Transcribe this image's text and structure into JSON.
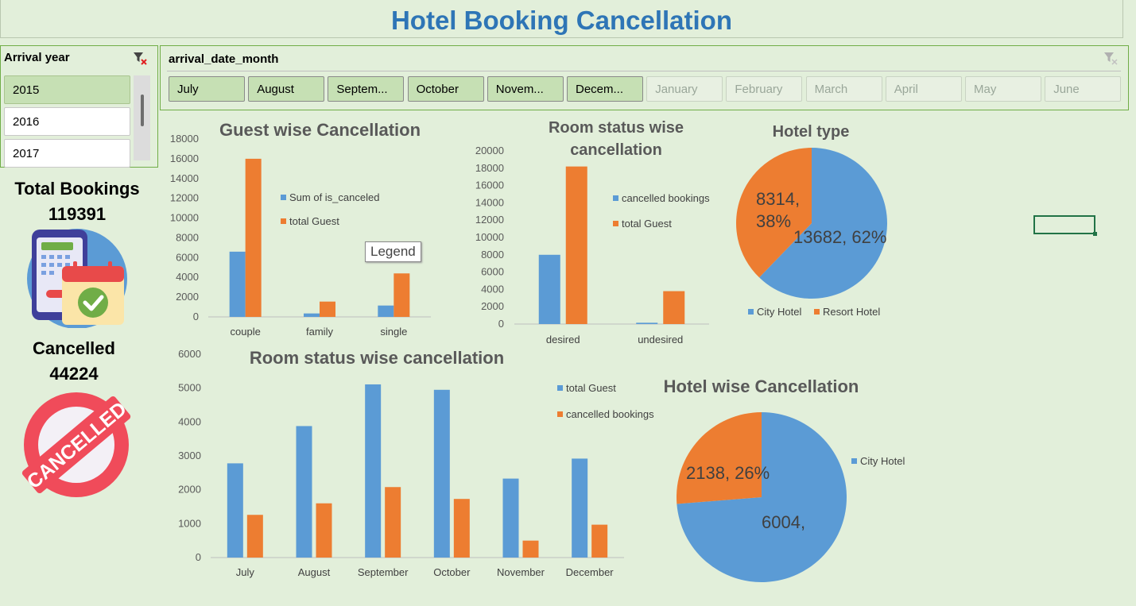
{
  "title": "Hotel Booking Cancellation",
  "year_slicer": {
    "header": "Arrival year",
    "items": [
      {
        "label": "2015",
        "selected": true
      },
      {
        "label": "2016",
        "selected": false
      },
      {
        "label": "2017",
        "selected": false
      }
    ]
  },
  "month_slicer": {
    "header": "arrival_date_month",
    "items": [
      {
        "label": "July",
        "state": "sel"
      },
      {
        "label": "August",
        "state": "sel"
      },
      {
        "label": "Septem...",
        "state": "sel"
      },
      {
        "label": "October",
        "state": "sel"
      },
      {
        "label": "Novem...",
        "state": "sel"
      },
      {
        "label": "Decem...",
        "state": "sel"
      },
      {
        "label": "January",
        "state": "off"
      },
      {
        "label": "February",
        "state": "off"
      },
      {
        "label": "March",
        "state": "off"
      },
      {
        "label": "April",
        "state": "off"
      },
      {
        "label": "May",
        "state": "off"
      },
      {
        "label": "June",
        "state": "off"
      }
    ]
  },
  "kpi": {
    "total_label": "Total Bookings",
    "total_value": "119391",
    "cancel_label": "Cancelled",
    "cancel_value": "44224",
    "stamp_text": "CANCELLED"
  },
  "tooltip": "Legend",
  "colors": {
    "blue": "#5b9bd5",
    "orange": "#ed7d31"
  },
  "chart_data": [
    {
      "id": "guest",
      "type": "bar",
      "title": "Guest wise Cancellation",
      "categories": [
        "couple",
        "family",
        "single"
      ],
      "series": [
        {
          "name": "Sum of is_canceled",
          "values": [
            6600,
            350,
            1150
          ]
        },
        {
          "name": "total Guest",
          "values": [
            16000,
            1550,
            4400
          ]
        }
      ],
      "ylim": [
        0,
        18000
      ],
      "yticks": [
        0,
        2000,
        4000,
        6000,
        8000,
        10000,
        12000,
        14000,
        16000,
        18000
      ]
    },
    {
      "id": "room",
      "type": "bar",
      "title_lines": [
        "Room status wise",
        "cancellation"
      ],
      "categories": [
        "desired",
        "undesired"
      ],
      "series": [
        {
          "name": "cancelled bookings",
          "values": [
            8000,
            150
          ]
        },
        {
          "name": "total Guest",
          "values": [
            18200,
            3800
          ]
        }
      ],
      "ylim": [
        0,
        20000
      ],
      "yticks": [
        0,
        2000,
        4000,
        6000,
        8000,
        10000,
        12000,
        14000,
        16000,
        18000,
        20000
      ]
    },
    {
      "id": "hoteltype",
      "type": "pie",
      "title": "Hotel type",
      "slices": [
        {
          "name": "City Hotel",
          "value": 13682,
          "label": "13682, 62%"
        },
        {
          "name": "Resort Hotel",
          "value": 8314,
          "label": "8314, 38%"
        }
      ]
    },
    {
      "id": "month",
      "type": "bar",
      "title": "Room status wise cancellation",
      "categories": [
        "July",
        "August",
        "September",
        "October",
        "November",
        "December"
      ],
      "series": [
        {
          "name": "total Guest",
          "values": [
            2780,
            3880,
            5110,
            4950,
            2330,
            2920
          ]
        },
        {
          "name": "cancelled bookings",
          "values": [
            1260,
            1600,
            2080,
            1730,
            500,
            970
          ]
        }
      ],
      "ylim": [
        0,
        6000
      ],
      "yticks": [
        0,
        1000,
        2000,
        3000,
        4000,
        5000,
        6000
      ]
    },
    {
      "id": "hotelwise",
      "type": "pie",
      "title": "Hotel wise Cancellation",
      "slices": [
        {
          "name": "City Hotel",
          "value": 6004,
          "label": "6004,"
        },
        {
          "name": "",
          "value": 2138,
          "label": "2138, 26%"
        }
      ]
    }
  ]
}
